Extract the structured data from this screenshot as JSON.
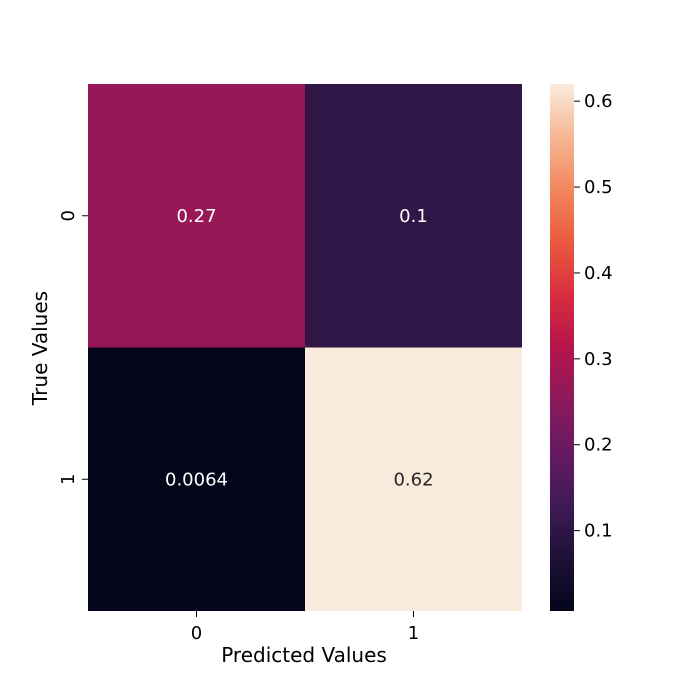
{
  "chart_data": {
    "type": "heatmap",
    "x_categories": [
      "0",
      "1"
    ],
    "y_categories": [
      "0",
      "1"
    ],
    "values": [
      [
        0.27,
        0.1
      ],
      [
        0.0064,
        0.62
      ]
    ],
    "cell_labels": [
      [
        "0.27",
        "0.1"
      ],
      [
        "0.0064",
        "0.62"
      ]
    ],
    "xlabel": "Predicted Values",
    "ylabel": "True Values",
    "colorbar": {
      "range": [
        0.0064,
        0.62
      ],
      "ticks": [
        0.1,
        0.2,
        0.3,
        0.4,
        0.5,
        0.6
      ],
      "tick_labels": [
        "0.1",
        "0.2",
        "0.3",
        "0.4",
        "0.5",
        "0.6"
      ],
      "colormap": "rocket"
    },
    "grid": false,
    "legend": "colorbar-right"
  }
}
